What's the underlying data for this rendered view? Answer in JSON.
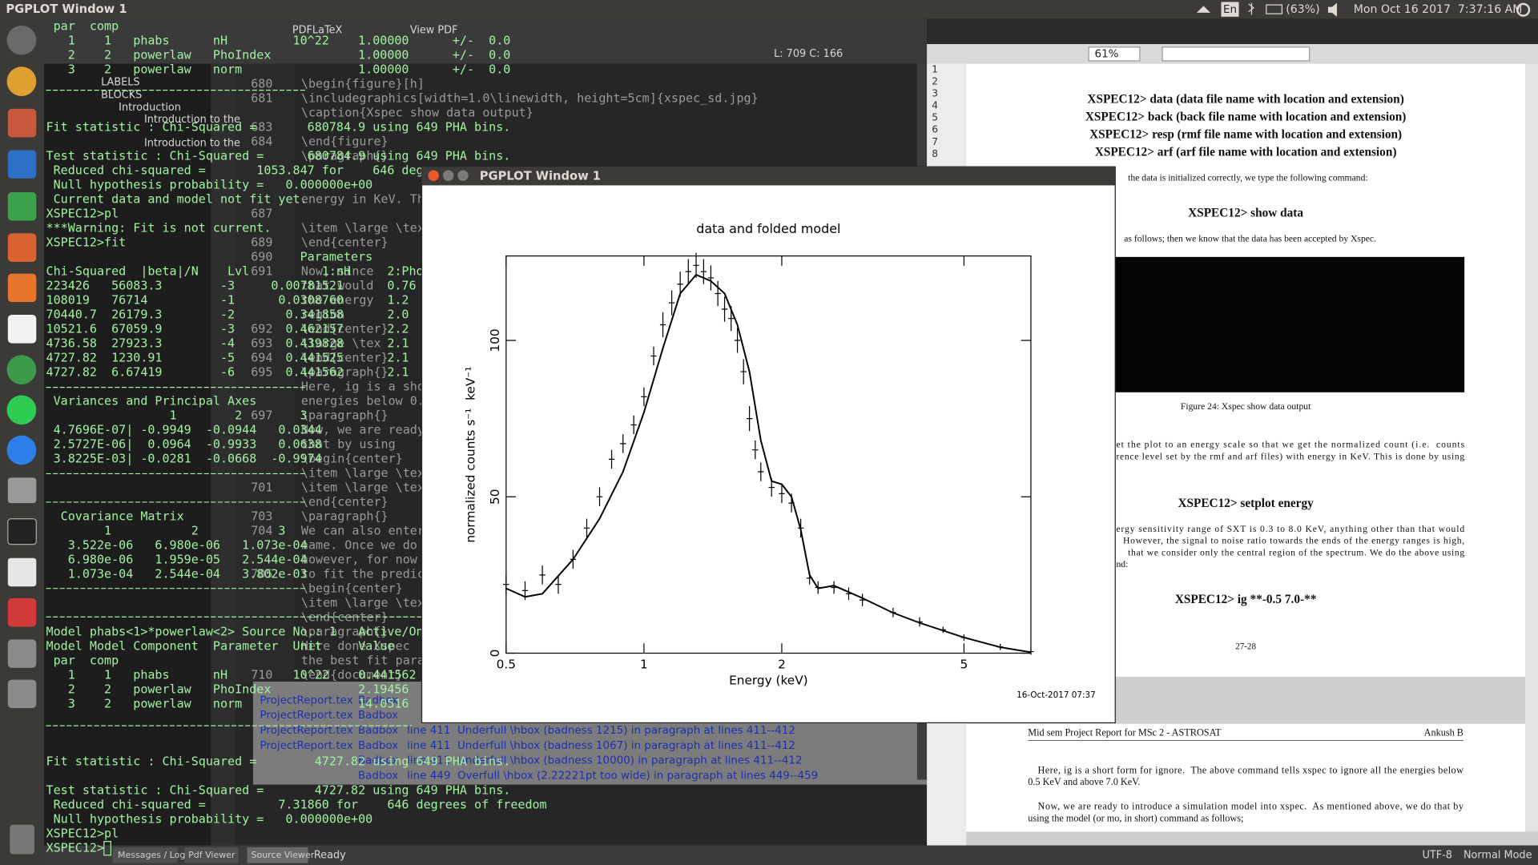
{
  "top_bar": {
    "title": "PGPLOT Window 1",
    "keyboard": "En",
    "battery": "(63%)",
    "clock": "Mon Oct 16 2017  7:37:16 AM"
  },
  "editor": {
    "toolbar": [
      "PDFLaTeX",
      "View PDF"
    ],
    "cursor_position": "L: 709 C: 166",
    "structure": [
      "LABELS",
      "BLOCKS",
      "Introduction",
      "Introduction to the",
      "Introduction to the"
    ],
    "line_numbers": [
      "680",
      "681",
      "683",
      "684",
      "687",
      "689",
      "690",
      "691",
      "692",
      "693",
      "694",
      "695",
      "697",
      "701",
      "703",
      "704",
      "705",
      "710"
    ],
    "lines": [
      "\\begin{figure}[h]",
      "\\includegraphics[width=1.0\\linewidth, height=5cm]{xspec_sd.jpg}",
      "\\caption{Xspec show data output}",
      "\\end{figure}",
      "\\paragraph{}",
      "energy in KeV. This",
      "\\item \\large \\tex",
      "\\end{center}",
      "Now, since",
      "that would",
      "the energy",
      "region",
      "\\end{center}",
      "\\large \\tex",
      "\\end{center}",
      "\\paragraph{}",
      "Here, ig is a sho",
      "energies below 0.5",
      "\\paragraph{}",
      "Now, we are ready",
      "that by using",
      "\\begin{center}",
      "\\item \\large \\tex",
      "\\item \\large \\tex",
      "\\end{center}",
      "\\paragraph{}",
      "We can also enter",
      "name. Once we do",
      "however, for now",
      "to fit the predic",
      "\\begin{center}",
      "\\item \\large \\tex",
      "\\end{center}",
      "\\paragraph{}",
      "Here done Xspec",
      "the best fit para",
      "\\end{document}"
    ],
    "messages": [
      {
        "file": "ProjectReport.tex",
        "type": "Badbox"
      },
      {
        "file": "ProjectReport.tex",
        "type": "Badbox"
      },
      {
        "file": "ProjectReport.tex",
        "type": "Badbox",
        "message": "line 411  Underfull \\hbox (badness 1215) in paragraph at lines 411--412"
      },
      {
        "file": "ProjectReport.tex",
        "type": "Badbox",
        "message": "line 411  Underfull \\hbox (badness 1067) in paragraph at lines 411--412"
      },
      {
        "type": "Badbox",
        "message": "line 411  Underfull \\hbox (badness 10000) in paragraph at lines 411--412"
      },
      {
        "type": "Badbox",
        "message": "line 449  Overfull \\hbox (2.22221pt too wide) in paragraph at lines 449--459"
      }
    ]
  },
  "terminal": {
    "lines": [
      " par  comp",
      "   1    1   phabs      nH         10^22    1.00000      +/-  0.0",
      "   2    2   powerlaw   PhoIndex            1.00000      +/-  0.0",
      "   3    2   powerlaw   norm                1.00000      +/-  0.0",
      "Fit statistic : Chi-Squared =       680784.9 using 649 PHA bins.",
      "Test statistic : Chi-Squared =      680784.9 using 649 PHA bins.",
      " Reduced chi-squared =       1053.847 for    646 deg",
      " Null hypothesis probability =   0.000000e+00",
      " Current data and model not fit yet.",
      "XSPEC12>pl",
      "***Warning: Fit is not current.",
      "XSPEC12>fit",
      "                                   Parameters",
      "Chi-Squared  |beta|/N    Lvl          1:nH     2:Pho",
      "223426   56083.3        -3     0.00781521      0.76",
      "108019   76714          -1      0.0308760      1.2",
      "70440.7  26179.3        -2       0.341858      2.0",
      "10521.6  67059.9        -3       0.462157      2.2",
      "4736.58  27923.3        -4       0.439828      2.1",
      "4727.82  1230.91        -5       0.441525      2.1",
      "4727.82  6.67419        -6       0.441562      2.1",
      " Variances and Principal Axes",
      "                 1        2        3",
      " 4.7696E-07| -0.9949  -0.0944   0.0344",
      " 2.5727E-06|  0.0964  -0.9933   0.0638",
      " 3.8225E-03| -0.0281  -0.0668  -0.9974",
      "  Covariance Matrix",
      "        1           2           3",
      "   3.522e-06   6.980e-06   1.073e-04",
      "   6.980e-06   1.959e-05   2.544e-04",
      "   1.073e-04   2.544e-04   3.802e-03",
      "Model phabs<1>*powerlaw<2> Source No.: 1   Active/On",
      "Model Model Component  Parameter  Unit     Value",
      " par  comp",
      "   1    1   phabs      nH         10^22    0.441562",
      "   2    2   powerlaw   PhoIndex            2.19456",
      "   3    2   powerlaw   norm                14.0516",
      "Fit statistic : Chi-Squared =        4727.82 using 649 PHA bins.",
      "Test statistic : Chi-Squared =       4727.82 using 649 PHA bins.",
      " Reduced chi-squared =          7.31860 for    646 degrees of freedom",
      " Null hypothesis probability =   0.000000e+00",
      "XSPEC12>pl",
      "XSPEC12>"
    ]
  },
  "pgplot_window": {
    "title": "PGPLOT Window 1"
  },
  "chart_data": {
    "type": "line",
    "title": "data and folded model",
    "x_label": "Energy (keV)",
    "y_label": "normalized counts s⁻¹  keV⁻¹",
    "timestamp": "16-Oct-2017 07:37",
    "xscale": "log",
    "xlim": [
      0.5,
      7.0
    ],
    "ylim": [
      0,
      127
    ],
    "xticks": [
      0.5,
      1,
      2,
      5
    ],
    "yticks": [
      0,
      50,
      100
    ],
    "series": [
      {
        "style": "errorbar",
        "color": "#000000",
        "x": [
          0.5,
          0.55,
          0.6,
          0.65,
          0.7,
          0.75,
          0.8,
          0.85,
          0.9,
          0.95,
          1.0,
          1.05,
          1.1,
          1.15,
          1.2,
          1.25,
          1.3,
          1.35,
          1.4,
          1.45,
          1.5,
          1.55,
          1.6,
          1.65,
          1.7,
          1.75,
          1.8,
          1.9,
          2.0,
          2.1,
          2.2,
          2.3,
          2.4,
          2.6,
          2.8,
          3.0,
          3.5,
          4.0,
          4.5,
          5.0,
          6.0,
          7.0
        ],
        "values": [
          22,
          20,
          25,
          22,
          30,
          40,
          50,
          62,
          67,
          73,
          82,
          95,
          105,
          112,
          118,
          122,
          124,
          122,
          120,
          115,
          110,
          107,
          100,
          90,
          75,
          65,
          58,
          53,
          51,
          48,
          40,
          24,
          21,
          21,
          19,
          17,
          13,
          10,
          7.5,
          5,
          2,
          0.5
        ],
        "errors": [
          3,
          3,
          3,
          3,
          3,
          3,
          3,
          3,
          3,
          3,
          3,
          3,
          4,
          4,
          4,
          4,
          4,
          4,
          4,
          4,
          4,
          4,
          4,
          4,
          4,
          3,
          3,
          3,
          3,
          3,
          3,
          2,
          2,
          2,
          2,
          2,
          1.5,
          1.5,
          1,
          1,
          1,
          1
        ]
      },
      {
        "style": "line",
        "color": "#000000",
        "x": [
          0.5,
          0.55,
          0.6,
          0.7,
          0.8,
          0.9,
          1.0,
          1.1,
          1.2,
          1.3,
          1.4,
          1.5,
          1.6,
          1.7,
          1.8,
          1.9,
          2.0,
          2.1,
          2.2,
          2.3,
          2.4,
          2.6,
          3.0,
          3.5,
          4.0,
          5.0,
          6.0,
          7.0
        ],
        "values": [
          20.7,
          18,
          19,
          30,
          43,
          58,
          77,
          97.5,
          115,
          121,
          119,
          115,
          105,
          90,
          68,
          55,
          54,
          50,
          39.5,
          25,
          20.7,
          21.6,
          17.6,
          12.9,
          9.7,
          5,
          1.9,
          0.3
        ]
      }
    ]
  },
  "pdf_viewer": {
    "zoom": "61%",
    "gutter": [
      "1",
      "2",
      "3",
      "4",
      "5",
      "6",
      "7",
      "8"
    ],
    "text": [
      "XSPEC12> data (data file name with location and extension)",
      "XSPEC12> back (back file name with location and extension)",
      "XSPEC12> resp (rmf file name with location and extension)",
      "XSPEC12> arf (arf file name with location and extension)",
      "the data is initialized correctly, we type the following command:",
      "XSPEC12> show data",
      "as follows; then we know that the data has been accepted by Xspec.",
      "Figure 24: Xspec show data output",
      "et the plot to an energy scale so that we get the normalized count (i.e.  counts",
      "rence level set by the rmf and arf files) with energy in KeV. This is done by using",
      "XSPEC12> setplot energy",
      "ergy sensitivity range of SXT is 0.3 to 8.0 KeV, anything other than that would",
      "However, the signal to noise ratio towards the ends of the energy ranges is high,",
      "that we consider only the central region of the spectrum. We do the above using",
      "nd:",
      "XSPEC12> ig **-0.5 7.0-**",
      "27-28",
      "Mid sem Project Report for MSc 2 - ASTROSAT",
      "Ankush B",
      "Here, ig is a short form for ignore.  The above command tells xspec to ignore all the energies below",
      "0.5 KeV and above 7.0 KeV.",
      "Now, we are ready to introduce a simulation model into xspec.  As mentioned above, we do that by",
      "using the model (or mo, in short) command as follows;"
    ]
  },
  "status_bar": {
    "tabs": [
      "Messages / Log",
      "Pdf Viewer",
      "Source Viewer"
    ],
    "status": "Ready",
    "encoding": "UTF-8",
    "mode": "Normal Mode"
  }
}
